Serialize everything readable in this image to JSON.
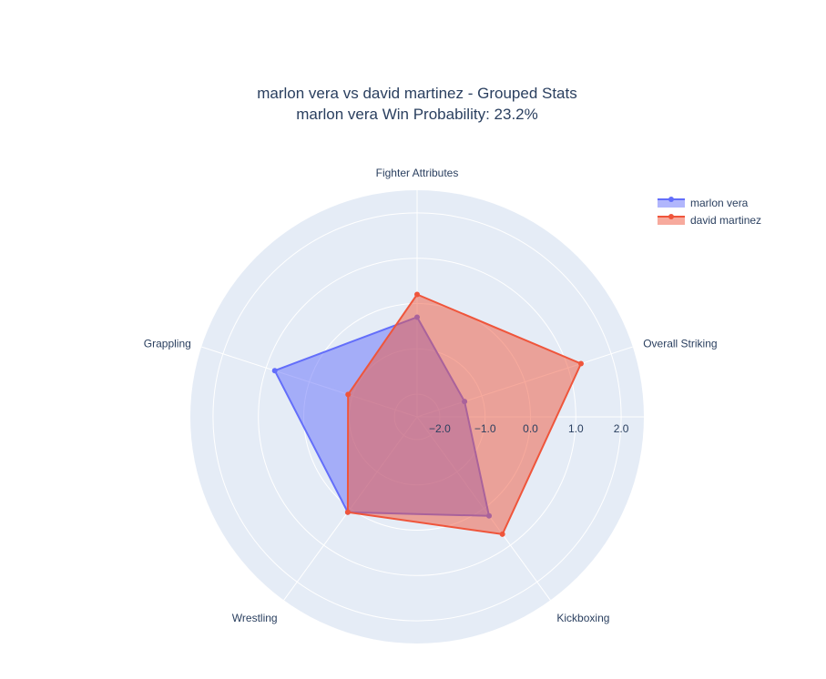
{
  "chart_data": {
    "type": "radar",
    "title": "marlon vera vs david martinez - Grouped Stats",
    "subtitle": "marlon vera Win Probability: 23.2%",
    "categories": [
      "Overall Striking",
      "Fighter Attributes",
      "Grappling",
      "Wrestling",
      "Kickboxing"
    ],
    "radial_range": [
      -2.5,
      2.5
    ],
    "radial_ticks": [
      -2.0,
      -1.0,
      0.0,
      1.0,
      2.0
    ],
    "radial_tick_labels": [
      "−2.0",
      "−1.0",
      "0.0",
      "1.0",
      "2.0"
    ],
    "angular_grid": true,
    "radial_grid": true,
    "legend_position": "top-right",
    "series": [
      {
        "name": "marlon vera",
        "values": [
          -1.4,
          -0.3,
          0.8,
          0.1,
          0.2
        ],
        "color": "#636efa"
      },
      {
        "name": "david martinez",
        "values": [
          1.3,
          0.2,
          -0.9,
          0.1,
          0.7
        ],
        "color": "#ef553b"
      }
    ]
  },
  "colors": {
    "polar_bg": "#e5ecf6",
    "grid": "#ffffff",
    "text": "#2a3f5f"
  }
}
